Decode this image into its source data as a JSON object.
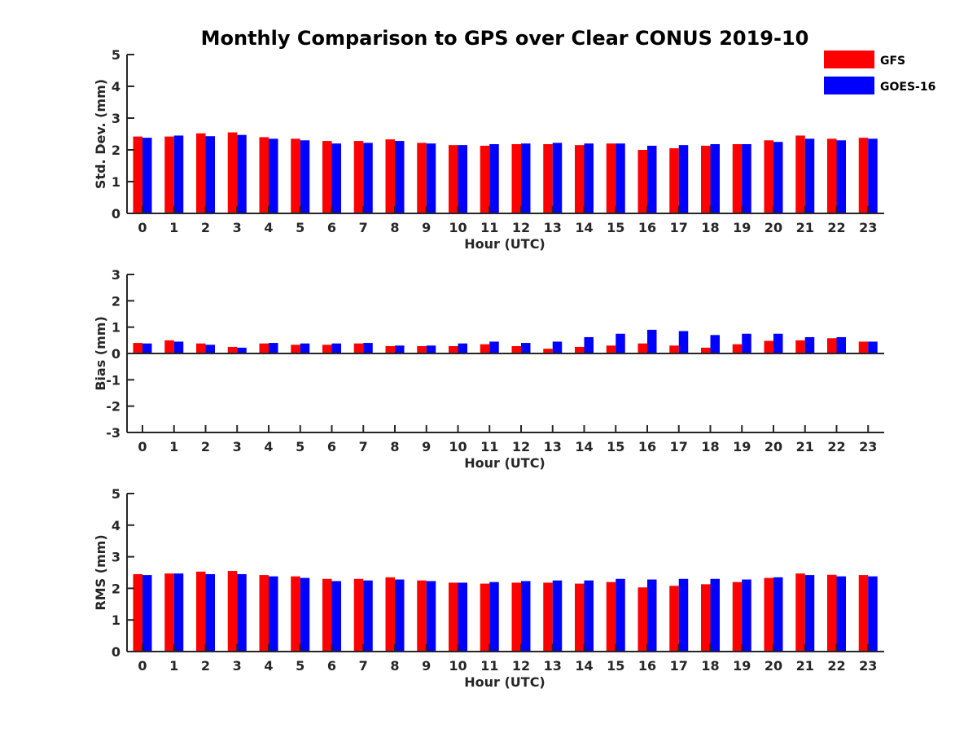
{
  "figure_title": "Monthly Comparison to GPS over Clear CONUS 2019-10",
  "legend": [
    {
      "label": "GFS",
      "color": "#ff0000"
    },
    {
      "label": "GOES-16",
      "color": "#0000ff"
    }
  ],
  "chart_data": [
    {
      "type": "bar",
      "xlabel": "Hour (UTC)",
      "ylabel": "Std. Dev. (mm)",
      "ylim": [
        0,
        5
      ],
      "yticks": [
        0,
        1,
        2,
        3,
        4,
        5
      ],
      "categories": [
        "0",
        "1",
        "2",
        "3",
        "4",
        "5",
        "6",
        "7",
        "8",
        "9",
        "10",
        "11",
        "12",
        "13",
        "14",
        "15",
        "16",
        "17",
        "18",
        "19",
        "20",
        "21",
        "22",
        "23"
      ],
      "series": [
        {
          "name": "GFS",
          "color": "#ff0000",
          "values": [
            2.42,
            2.42,
            2.52,
            2.55,
            2.4,
            2.35,
            2.28,
            2.28,
            2.33,
            2.22,
            2.15,
            2.13,
            2.18,
            2.18,
            2.15,
            2.2,
            2.0,
            2.05,
            2.13,
            2.18,
            2.3,
            2.45,
            2.35,
            2.38
          ]
        },
        {
          "name": "GOES-16",
          "color": "#0000ff",
          "values": [
            2.38,
            2.45,
            2.43,
            2.47,
            2.35,
            2.3,
            2.2,
            2.22,
            2.28,
            2.2,
            2.15,
            2.18,
            2.2,
            2.22,
            2.2,
            2.2,
            2.13,
            2.15,
            2.18,
            2.18,
            2.25,
            2.35,
            2.3,
            2.35
          ]
        }
      ]
    },
    {
      "type": "bar",
      "xlabel": "Hour (UTC)",
      "ylabel": "Bias (mm)",
      "ylim": [
        -3,
        3
      ],
      "yticks": [
        -3,
        -2,
        -1,
        0,
        1,
        2,
        3
      ],
      "categories": [
        "0",
        "1",
        "2",
        "3",
        "4",
        "5",
        "6",
        "7",
        "8",
        "9",
        "10",
        "11",
        "12",
        "13",
        "14",
        "15",
        "16",
        "17",
        "18",
        "19",
        "20",
        "21",
        "22",
        "23"
      ],
      "series": [
        {
          "name": "GFS",
          "color": "#ff0000",
          "values": [
            0.4,
            0.5,
            0.38,
            0.25,
            0.38,
            0.33,
            0.33,
            0.38,
            0.28,
            0.28,
            0.28,
            0.35,
            0.28,
            0.18,
            0.25,
            0.3,
            0.38,
            0.3,
            0.22,
            0.35,
            0.48,
            0.5,
            0.58,
            0.45
          ]
        },
        {
          "name": "GOES-16",
          "color": "#0000ff",
          "values": [
            0.38,
            0.45,
            0.33,
            0.22,
            0.4,
            0.38,
            0.38,
            0.4,
            0.3,
            0.3,
            0.38,
            0.45,
            0.4,
            0.45,
            0.62,
            0.75,
            0.9,
            0.85,
            0.7,
            0.75,
            0.75,
            0.62,
            0.62,
            0.45
          ]
        }
      ]
    },
    {
      "type": "bar",
      "xlabel": "Hour (UTC)",
      "ylabel": "RMS (mm)",
      "ylim": [
        0,
        5
      ],
      "yticks": [
        0,
        1,
        2,
        3,
        4,
        5
      ],
      "categories": [
        "0",
        "1",
        "2",
        "3",
        "4",
        "5",
        "6",
        "7",
        "8",
        "9",
        "10",
        "11",
        "12",
        "13",
        "14",
        "15",
        "16",
        "17",
        "18",
        "19",
        "20",
        "21",
        "22",
        "23"
      ],
      "series": [
        {
          "name": "GFS",
          "color": "#ff0000",
          "values": [
            2.45,
            2.47,
            2.53,
            2.55,
            2.42,
            2.38,
            2.3,
            2.3,
            2.35,
            2.25,
            2.18,
            2.15,
            2.18,
            2.18,
            2.15,
            2.2,
            2.03,
            2.08,
            2.13,
            2.2,
            2.33,
            2.47,
            2.43,
            2.42
          ]
        },
        {
          "name": "GOES-16",
          "color": "#0000ff",
          "values": [
            2.42,
            2.47,
            2.45,
            2.45,
            2.38,
            2.33,
            2.23,
            2.25,
            2.28,
            2.23,
            2.18,
            2.2,
            2.23,
            2.25,
            2.25,
            2.3,
            2.28,
            2.3,
            2.3,
            2.28,
            2.35,
            2.42,
            2.38,
            2.38
          ]
        }
      ]
    }
  ]
}
